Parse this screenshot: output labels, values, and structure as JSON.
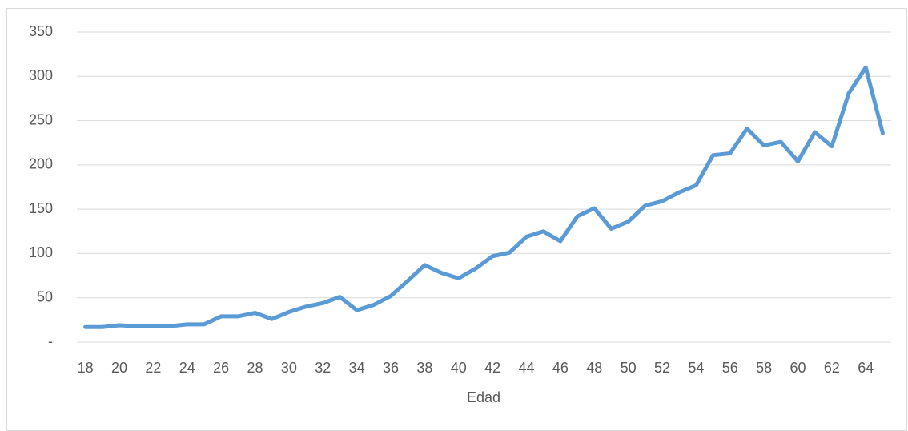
{
  "chart_data": {
    "type": "line",
    "x_label": "Edad",
    "x": [
      18,
      19,
      20,
      21,
      22,
      23,
      24,
      25,
      26,
      27,
      28,
      29,
      30,
      31,
      32,
      33,
      34,
      35,
      36,
      37,
      38,
      39,
      40,
      41,
      42,
      43,
      44,
      45,
      46,
      47,
      48,
      49,
      50,
      51,
      52,
      53,
      54,
      55,
      56,
      57,
      58,
      59,
      60,
      61,
      62,
      63,
      64,
      65
    ],
    "values": [
      17,
      17,
      19,
      18,
      18,
      18,
      20,
      20,
      29,
      29,
      33,
      26,
      34,
      40,
      44,
      51,
      36,
      42,
      52,
      69,
      87,
      78,
      72,
      83,
      97,
      101,
      119,
      125,
      114,
      142,
      151,
      128,
      136,
      154,
      159,
      169,
      177,
      211,
      213,
      241,
      222,
      226,
      204,
      237,
      221,
      281,
      310,
      236
    ],
    "color": "#5b9bd5",
    "xlim": [
      17.5,
      65.5
    ],
    "xticks": [
      18,
      20,
      22,
      24,
      26,
      28,
      30,
      32,
      34,
      36,
      38,
      40,
      42,
      44,
      46,
      48,
      50,
      52,
      54,
      56,
      58,
      60,
      62,
      64
    ],
    "ylim": [
      0,
      350
    ],
    "yticks": [
      {
        "value": 0,
        "label": "-"
      },
      50,
      100,
      150,
      200,
      250,
      300,
      350
    ],
    "grid": true
  }
}
